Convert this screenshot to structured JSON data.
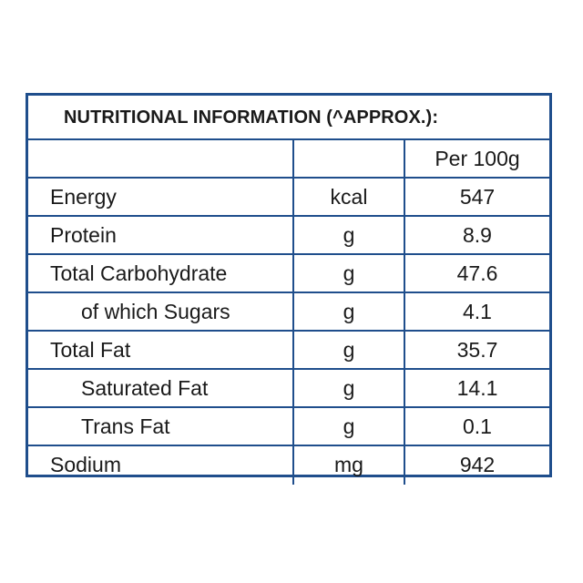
{
  "title": "NUTRITIONAL INFORMATION (^APPROX.):",
  "column_headers": {
    "name": "",
    "unit": "",
    "value": "Per 100g"
  },
  "rows": [
    {
      "name": "Energy",
      "unit": "kcal",
      "value": "547",
      "indent": false
    },
    {
      "name": "Protein",
      "unit": "g",
      "value": "8.9",
      "indent": false
    },
    {
      "name": "Total Carbohydrate",
      "unit": "g",
      "value": "47.6",
      "indent": false
    },
    {
      "name": "of which Sugars",
      "unit": "g",
      "value": "4.1",
      "indent": true
    },
    {
      "name": "Total Fat",
      "unit": "g",
      "value": "35.7",
      "indent": false
    },
    {
      "name": "Saturated Fat",
      "unit": "g",
      "value": "14.1",
      "indent": true
    },
    {
      "name": "Trans Fat",
      "unit": "g",
      "value": "0.1",
      "indent": true
    },
    {
      "name": "Sodium",
      "unit": "mg",
      "value": "942",
      "indent": false
    }
  ],
  "colors": {
    "border": "#1f4e8c",
    "text": "#1a1a1a",
    "background": "#ffffff"
  }
}
